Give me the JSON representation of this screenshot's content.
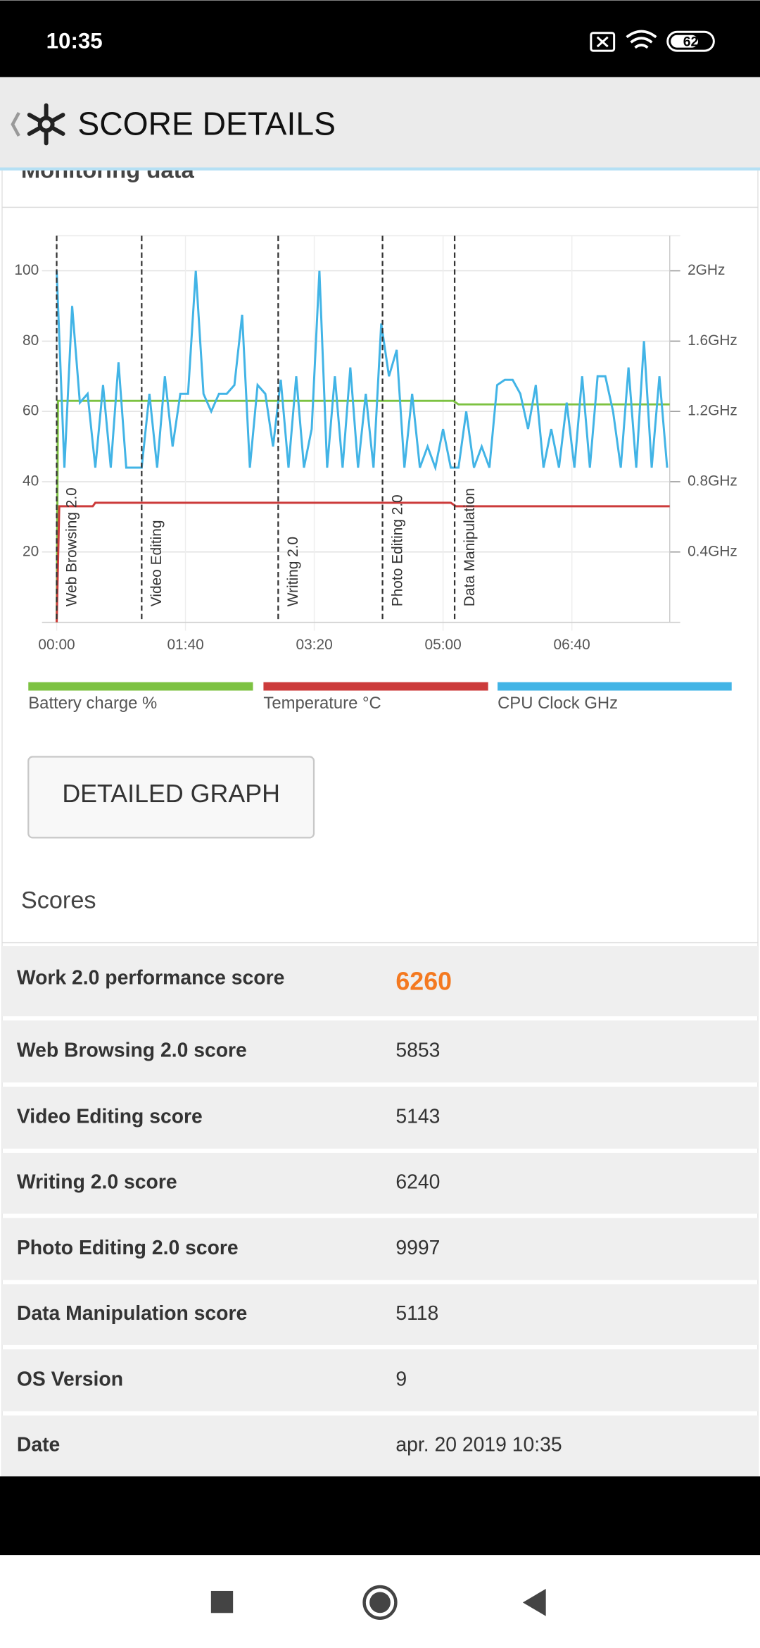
{
  "status_bar": {
    "time": "10:35",
    "battery": "62"
  },
  "header": {
    "title": "SCORE DETAILS"
  },
  "section_title": "Monitoring data",
  "chart_data": {
    "type": "line",
    "xlim": [
      0,
      476
    ],
    "xticks": [
      {
        "value": 0,
        "label": "00:00"
      },
      {
        "value": 100,
        "label": "01:40"
      },
      {
        "value": 200,
        "label": "03:20"
      },
      {
        "value": 300,
        "label": "05:00"
      },
      {
        "value": 400,
        "label": "06:40"
      }
    ],
    "ylim": [
      0,
      110
    ],
    "yticks": [
      20,
      40,
      60,
      80,
      100
    ],
    "y2lim": [
      0,
      2.2
    ],
    "y2ticks": [
      {
        "value": 0.4,
        "label": "0.4GHz"
      },
      {
        "value": 0.8,
        "label": "0.8GHz"
      },
      {
        "value": 1.2,
        "label": "1.2GHz"
      },
      {
        "value": 1.6,
        "label": "1.6GHz"
      },
      {
        "value": 2,
        "label": "2GHz"
      }
    ],
    "grid": true,
    "markers": [
      {
        "x": 0,
        "label": "Web Browsing 2.0"
      },
      {
        "x": 66,
        "label": "Video Editing"
      },
      {
        "x": 172,
        "label": "Writing 2.0"
      },
      {
        "x": 253,
        "label": "Photo Editing 2.0"
      },
      {
        "x": 309,
        "label": "Data Manipulation"
      }
    ],
    "series": [
      {
        "name": "Battery charge %",
        "color": "#7dc242",
        "x": [
          0,
          1,
          308,
          312,
          476
        ],
        "values": [
          0,
          63,
          63,
          62,
          62
        ]
      },
      {
        "name": "Temperature °C",
        "color": "#cc3b3b",
        "x": [
          0,
          2,
          28,
          30,
          306,
          310,
          476
        ],
        "values": [
          0,
          33,
          33,
          34,
          34,
          33,
          33
        ]
      },
      {
        "name": "CPU Clock GHz",
        "color": "#42b4e6",
        "axis": "y2",
        "x": [
          0,
          6,
          12,
          18,
          24,
          30,
          36,
          42,
          48,
          54,
          60,
          66,
          72,
          78,
          84,
          90,
          96,
          102,
          108,
          114,
          120,
          126,
          132,
          138,
          144,
          150,
          156,
          162,
          168,
          174,
          180,
          186,
          192,
          198,
          204,
          210,
          216,
          222,
          228,
          234,
          240,
          246,
          252,
          258,
          264,
          270,
          276,
          282,
          288,
          294,
          300,
          306,
          312,
          318,
          324,
          330,
          336,
          342,
          348,
          354,
          360,
          366,
          372,
          378,
          384,
          390,
          396,
          402,
          408,
          414,
          420,
          426,
          432,
          438,
          444,
          450,
          456,
          462,
          468,
          474
        ],
        "values": [
          2.0,
          0.88,
          1.8,
          1.25,
          1.3,
          0.88,
          1.35,
          0.88,
          1.48,
          0.88,
          0.88,
          0.88,
          1.3,
          0.88,
          1.4,
          1.0,
          1.3,
          1.3,
          2.0,
          1.3,
          1.2,
          1.3,
          1.3,
          1.35,
          1.75,
          0.88,
          1.35,
          1.3,
          1.0,
          1.38,
          0.88,
          1.4,
          0.88,
          1.1,
          2.0,
          0.88,
          1.4,
          0.88,
          1.45,
          0.88,
          1.3,
          0.88,
          1.7,
          1.4,
          1.55,
          0.88,
          1.3,
          0.88,
          1.0,
          0.88,
          1.1,
          0.88,
          0.88,
          1.2,
          0.88,
          1.0,
          0.88,
          1.35,
          1.38,
          1.38,
          1.3,
          1.1,
          1.35,
          0.88,
          1.1,
          0.88,
          1.25,
          0.88,
          1.4,
          0.88,
          1.4,
          1.4,
          1.2,
          0.88,
          1.45,
          0.88,
          1.6,
          0.88,
          1.4,
          0.88
        ]
      }
    ]
  },
  "button": "DETAILED GRAPH",
  "scores_title": "Scores",
  "scores": [
    [
      "Work 2.0 performance score",
      "6260"
    ],
    [
      "Web Browsing 2.0 score",
      "5853"
    ],
    [
      "Video Editing score",
      "5143"
    ],
    [
      "Writing 2.0 score",
      "6240"
    ],
    [
      "Photo Editing 2.0 score",
      "9997"
    ],
    [
      "Data Manipulation score",
      "5118"
    ],
    [
      "OS Version",
      "9"
    ],
    [
      "Date",
      "apr. 20 2019 10:35"
    ]
  ]
}
